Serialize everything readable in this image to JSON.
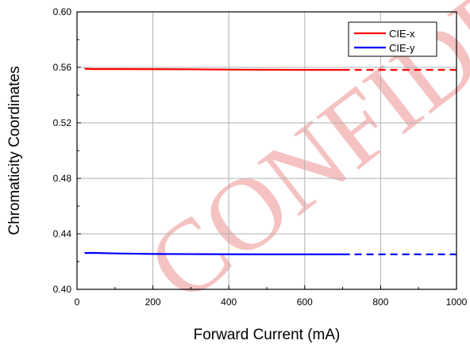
{
  "chart_data": {
    "type": "line",
    "xlabel": "Forward Current (mA)",
    "ylabel": "Chromaticity Coordinates",
    "xlim": [
      0,
      1000
    ],
    "ylim": [
      0.4,
      0.6
    ],
    "xticks": [
      "0",
      "200",
      "400",
      "600",
      "800",
      "1000"
    ],
    "yticks": [
      "0.40",
      "0.44",
      "0.48",
      "0.52",
      "0.56",
      "0.60"
    ],
    "grid": true,
    "legend_position": "top-right",
    "watermark": "CONFIDENTIAL",
    "series": [
      {
        "name": "CIE-x",
        "color": "#ff0000",
        "solid": {
          "x": [
            20,
            40,
            100,
            200,
            300,
            400,
            500,
            600,
            700
          ],
          "y": [
            0.559,
            0.5588,
            0.5588,
            0.5587,
            0.5586,
            0.5584,
            0.5583,
            0.5582,
            0.5582
          ]
        },
        "dashed": {
          "x": [
            700,
            1000
          ],
          "y": [
            0.5582,
            0.5582
          ]
        }
      },
      {
        "name": "CIE-y",
        "color": "#0000ff",
        "solid": {
          "x": [
            20,
            40,
            100,
            200,
            300,
            400,
            500,
            600,
            700
          ],
          "y": [
            0.4262,
            0.4263,
            0.4259,
            0.4255,
            0.4254,
            0.4253,
            0.4252,
            0.4252,
            0.4252
          ]
        },
        "dashed": {
          "x": [
            700,
            1000
          ],
          "y": [
            0.4252,
            0.4252
          ]
        }
      }
    ]
  }
}
